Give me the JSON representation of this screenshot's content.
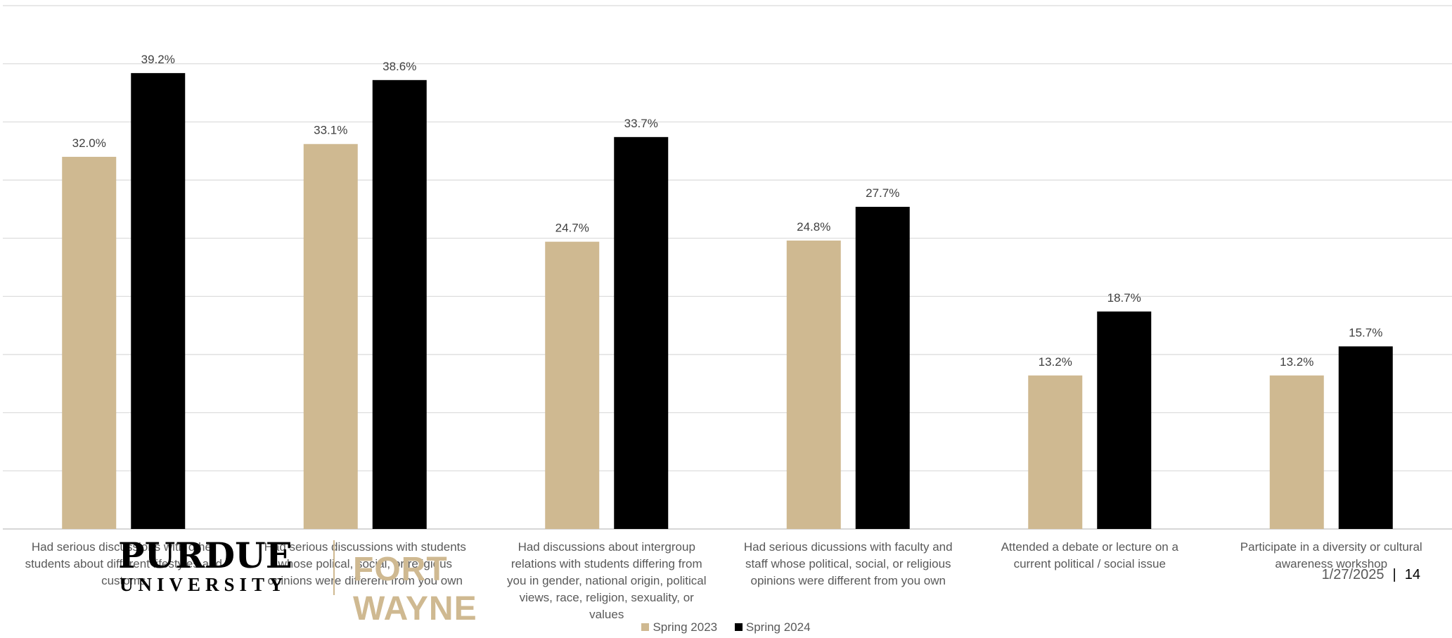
{
  "chart_data": {
    "type": "bar",
    "categories": [
      "Had serious discussions with other students about different lifestyles and customs",
      "Had serious discussions with students whose polical, social, or religious opinions were different from you own",
      "Had discussions about intergroup relations with students differing from you in gender, national origin, political views, race, religion, sexuality, or values",
      "Had serious dicussions with faculty and staff whose political, social, or religious opinions were different from you own",
      "Attended a debate or lecture on a current political / social issue",
      "Participate in a diversity or cultural awareness workshop"
    ],
    "series": [
      {
        "name": "Spring 2023",
        "color": "#CFB991",
        "values": [
          32.0,
          33.1,
          24.7,
          24.8,
          13.2,
          13.2
        ],
        "labels": [
          "32.0%",
          "33.1%",
          "24.7%",
          "24.8%",
          "13.2%",
          "13.2%"
        ]
      },
      {
        "name": "Spring 2024",
        "color": "#000000",
        "values": [
          39.2,
          38.6,
          33.7,
          27.7,
          18.7,
          15.7
        ],
        "labels": [
          "39.2%",
          "38.6%",
          "33.7%",
          "27.7%",
          "18.7%",
          "15.7%"
        ]
      }
    ],
    "ylim": [
      0,
      45
    ],
    "grid": true,
    "legend_position": "bottom",
    "title": "",
    "xlabel": "",
    "ylabel": ""
  },
  "logo": {
    "primary": "PURDUE",
    "secondary": "UNIVERSITY",
    "campus": "FORT WAYNE"
  },
  "footer": {
    "date": "1/27/2025",
    "separator": "|",
    "page": "14"
  }
}
